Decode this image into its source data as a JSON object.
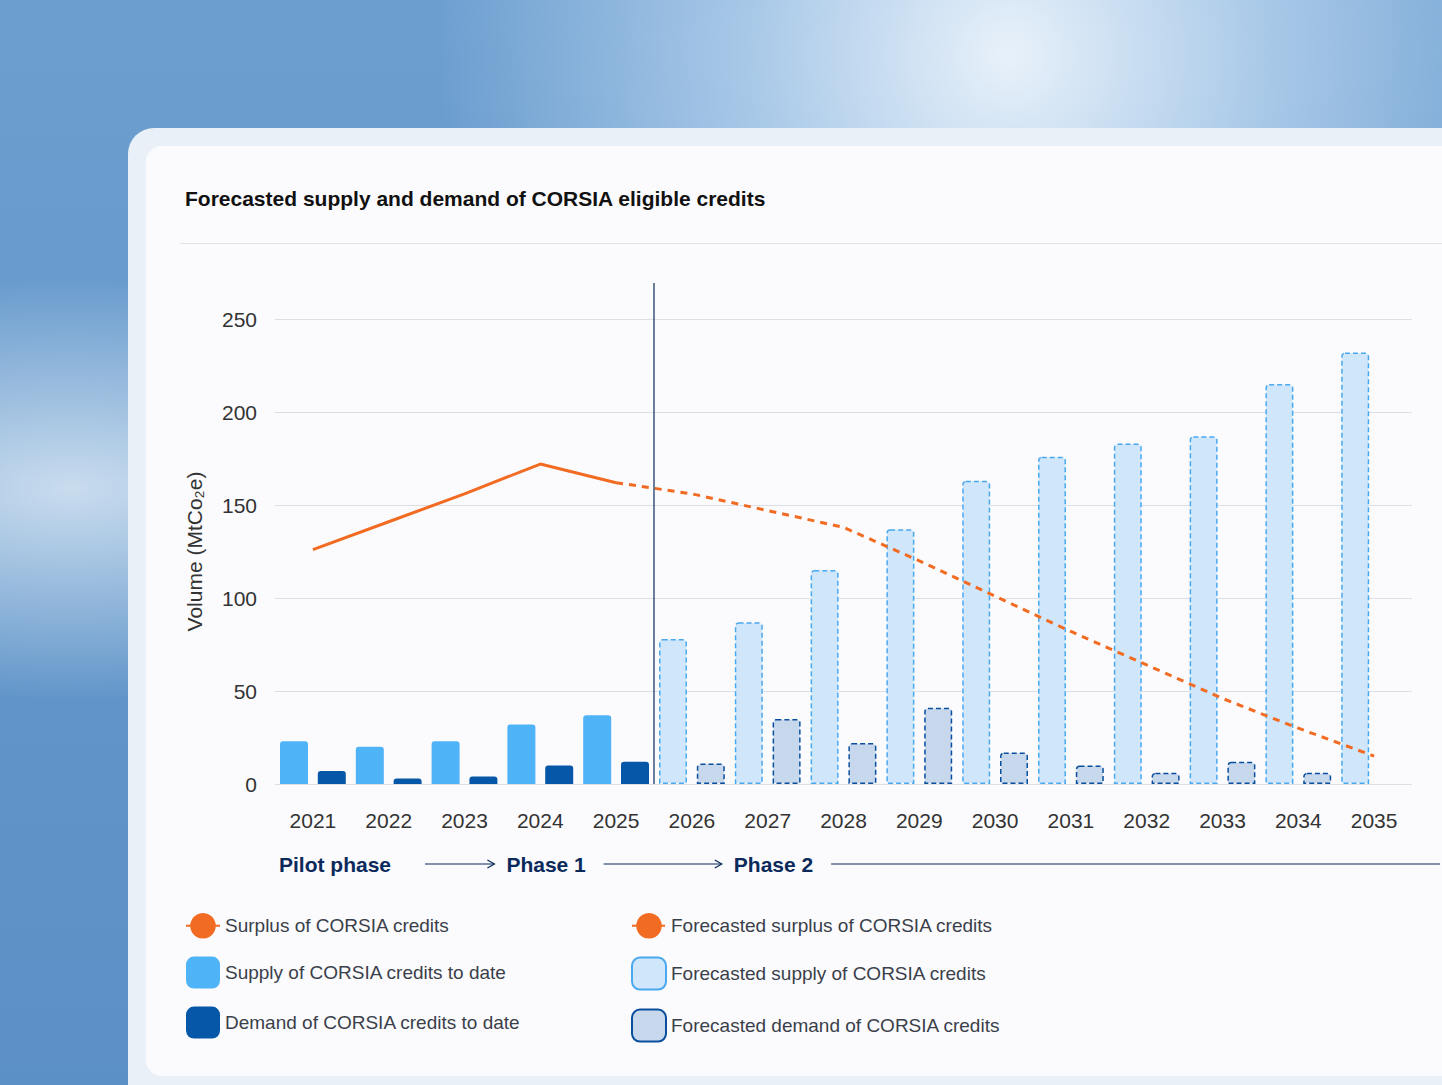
{
  "chart_data": {
    "type": "bar",
    "title": "Forecasted supply and demand of CORSIA eligible credits",
    "y_label": "Volume (MtCo₂e)",
    "categories": [
      "2021",
      "2022",
      "2023",
      "2024",
      "2025",
      "2026",
      "2027",
      "2028",
      "2029",
      "2030",
      "2031",
      "2032",
      "2033",
      "2034",
      "2035"
    ],
    "series": [
      {
        "name": "Surplus of CORSIA credits",
        "type": "line",
        "line_style": "solid",
        "color": "#f26b22",
        "values": [
          126,
          141,
          156,
          172,
          162,
          null,
          null,
          null,
          null,
          null,
          null,
          null,
          null,
          null,
          null
        ]
      },
      {
        "name": "Supply of CORSIA credits to date",
        "type": "bar",
        "line_style": "solid",
        "color": "#4fb3f7",
        "values": [
          23,
          20,
          23,
          32,
          37,
          null,
          null,
          null,
          null,
          null,
          null,
          null,
          null,
          null,
          null
        ]
      },
      {
        "name": "Demand of CORSIA credits to date",
        "type": "bar",
        "line_style": "solid",
        "color": "#0757a8",
        "values": [
          7,
          3,
          4,
          10,
          12,
          null,
          null,
          null,
          null,
          null,
          null,
          null,
          null,
          null,
          null
        ]
      },
      {
        "name": "Forecasted surplus of CORSIA credits",
        "type": "line",
        "line_style": "dashed",
        "color": "#f26b22",
        "values": [
          null,
          null,
          null,
          null,
          162,
          156,
          147,
          138,
          120,
          101,
          82,
          64,
          46,
          30,
          15
        ]
      },
      {
        "name": "Forecasted supply of CORSIA credits",
        "type": "bar",
        "line_style": "dashed",
        "color": "#cfe6fb",
        "values": [
          null,
          null,
          null,
          null,
          null,
          78,
          87,
          115,
          137,
          163,
          176,
          183,
          187,
          215,
          232
        ]
      },
      {
        "name": "Forecasted demand of CORSIA credits",
        "type": "bar",
        "line_style": "dashed",
        "color": "#c8d8ec",
        "values": [
          null,
          null,
          null,
          null,
          null,
          11,
          35,
          22,
          41,
          17,
          10,
          6,
          12,
          6,
          null
        ]
      }
    ],
    "ylim": [
      0,
      250
    ],
    "yticks": [
      0,
      50,
      100,
      150,
      200,
      250
    ],
    "grid": true,
    "legend": "bottom",
    "phases": [
      {
        "label": "Pilot phase",
        "start": "2021"
      },
      {
        "label": "Phase 1",
        "start": "2024"
      },
      {
        "label": "Phase 2",
        "start": "2027"
      }
    ]
  }
}
